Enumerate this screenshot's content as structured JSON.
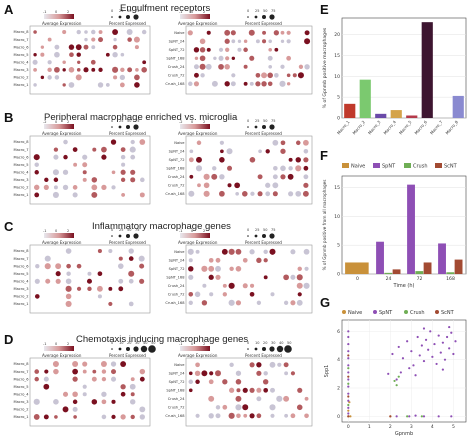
{
  "panel_letters": [
    "A",
    "B",
    "C",
    "D",
    "E",
    "F",
    "G"
  ],
  "panel_titles": {
    "A": "Engulfment receptors",
    "B": "Peripheral macrophage enriched vs. microglia",
    "C": "Inflammatory macrophage genes",
    "D": "Chemotaxis inducing macrophage genes"
  },
  "dotplot_legend": {
    "avg_label": "Average Expression",
    "pct_label": "Percent Expressed",
    "avg_ticks": [
      "-1",
      "0",
      "2"
    ],
    "avg_ticks_b": [
      "-2",
      "0",
      "2"
    ],
    "pct_ticks": [
      "0",
      "25",
      "50",
      "75"
    ],
    "pct_ticks_d": [
      "0",
      "10",
      "20",
      "30",
      "40",
      "50"
    ]
  },
  "dot_colors": {
    "high": "#7a1020",
    "mid": "#d89a9a",
    "low": "#e8e8ee"
  },
  "cluster_rows": [
    "Macro_8",
    "Macro_7",
    "Macro_6",
    "Macro_5",
    "Macro_4",
    "Macro_3",
    "Macro_2",
    "Macro_1"
  ],
  "condition_rows": [
    "Naive",
    "SpNT_24",
    "SpNT_72",
    "SpNT_168",
    "Crush_24",
    "Crush_72",
    "Crush_168"
  ],
  "chart_data": [
    {
      "panel": "E",
      "type": "bar",
      "ylabel": "% of Gpnmb positive macrophages",
      "categories": [
        "Macro_1",
        "Macro_2",
        "Macro_3",
        "Macro_4",
        "Macro_5",
        "Macro_6",
        "Macro_7",
        "Macro_8"
      ],
      "values": [
        3.4,
        9.2,
        1.0,
        1.9,
        0.6,
        23.0,
        0.0,
        5.3
      ],
      "colors": [
        "#c0392b",
        "#7bc96f",
        "#6a4aa8",
        "#d4a34a",
        "#b43a4a",
        "#3d1530",
        "#aaaaaa",
        "#8a8ad0"
      ],
      "yticks": [
        0,
        5,
        10,
        15,
        20
      ],
      "ylim": [
        0,
        24
      ],
      "grid": true
    },
    {
      "panel": "F",
      "type": "bar",
      "ylabel": "% of Gpnmb positive from all macrophages",
      "xlabel": "Time (h)",
      "categories": [
        "0",
        "24",
        "72",
        "168"
      ],
      "series": [
        {
          "name": "Naive",
          "color": "#c9913a",
          "values": [
            2.0,
            null,
            null,
            null
          ]
        },
        {
          "name": "SpNT",
          "color": "#8e4fb5",
          "values": [
            null,
            5.6,
            15.5,
            5.3
          ]
        },
        {
          "name": "Crush",
          "color": "#6fae55",
          "values": [
            null,
            0.2,
            0.5,
            0.3
          ]
        },
        {
          "name": "ScNT",
          "color": "#a24a32",
          "values": [
            null,
            0.8,
            2.0,
            2.5
          ]
        }
      ],
      "yticks": [
        0,
        5,
        10,
        15
      ],
      "ylim": [
        0,
        17
      ],
      "legend": "top",
      "grid": true
    },
    {
      "panel": "G",
      "type": "scatter",
      "xlabel": "Gpnmb",
      "ylabel": "Spp1",
      "xticks": [
        0,
        1,
        2,
        3,
        4,
        5
      ],
      "yticks": [
        0,
        2,
        4,
        6
      ],
      "xlim": [
        -0.3,
        5.6
      ],
      "ylim": [
        -0.4,
        6.8
      ],
      "legend": "top",
      "series": [
        {
          "name": "Naive",
          "color": "#c9913a",
          "points": [
            [
              0.0,
              0.0
            ],
            [
              0.1,
              0.0
            ],
            [
              0.05,
              1.0
            ],
            [
              2.0,
              0.0
            ],
            [
              0.0,
              0.4
            ]
          ]
        },
        {
          "name": "SpNT",
          "color": "#8e4fb5",
          "points": [
            [
              0.0,
              0.2
            ],
            [
              0.0,
              0.6
            ],
            [
              0.0,
              1.1
            ],
            [
              0.0,
              1.6
            ],
            [
              0.0,
              2.1
            ],
            [
              0.0,
              2.6
            ],
            [
              0.0,
              3.1
            ],
            [
              0.0,
              3.6
            ],
            [
              0.0,
              4.1
            ],
            [
              0.0,
              4.6
            ],
            [
              0.0,
              5.1
            ],
            [
              0.0,
              5.6
            ],
            [
              0.0,
              6.0
            ],
            [
              2.1,
              4.4
            ],
            [
              2.4,
              4.9
            ],
            [
              2.6,
              4.1
            ],
            [
              2.8,
              5.3
            ],
            [
              3.0,
              4.6
            ],
            [
              3.1,
              3.6
            ],
            [
              3.3,
              5.6
            ],
            [
              3.4,
              4.3
            ],
            [
              3.5,
              5.0
            ],
            [
              3.6,
              3.9
            ],
            [
              3.7,
              5.4
            ],
            [
              3.8,
              4.7
            ],
            [
              3.9,
              6.0
            ],
            [
              4.0,
              4.2
            ],
            [
              4.1,
              5.1
            ],
            [
              4.2,
              3.7
            ],
            [
              4.3,
              5.7
            ],
            [
              4.4,
              4.5
            ],
            [
              4.5,
              5.2
            ],
            [
              4.6,
              4.0
            ],
            [
              4.7,
              5.6
            ],
            [
              4.8,
              4.8
            ],
            [
              4.9,
              5.9
            ],
            [
              5.0,
              4.4
            ],
            [
              5.1,
              5.3
            ],
            [
              2.9,
              3.4
            ],
            [
              3.2,
              2.9
            ],
            [
              2.5,
              3.1
            ],
            [
              4.5,
              3.3
            ],
            [
              3.6,
              6.2
            ],
            [
              4.8,
              6.3
            ],
            [
              1.9,
              3.0
            ],
            [
              2.3,
              2.6
            ],
            [
              2.3,
              0.0
            ],
            [
              2.9,
              0.0
            ],
            [
              3.6,
              0.0
            ],
            [
              4.3,
              0.0
            ],
            [
              4.9,
              0.0
            ],
            [
              3.2,
              0.05
            ]
          ]
        },
        {
          "name": "Crush",
          "color": "#6fae55",
          "points": [
            [
              0.0,
              0.8
            ],
            [
              0.0,
              2.3
            ],
            [
              0.0,
              3.4
            ],
            [
              2.2,
              2.5
            ],
            [
              2.4,
              2.8
            ],
            [
              2.3,
              2.2
            ],
            [
              3.5,
              0.0
            ],
            [
              2.8,
              0.0
            ]
          ]
        },
        {
          "name": "ScNT",
          "color": "#a24a32",
          "points": [
            [
              0.0,
              0.0
            ],
            [
              0.0,
              1.4
            ],
            [
              0.0,
              2.8
            ],
            [
              0.0,
              4.3
            ],
            [
              2.0,
              0.0
            ]
          ]
        }
      ]
    }
  ]
}
